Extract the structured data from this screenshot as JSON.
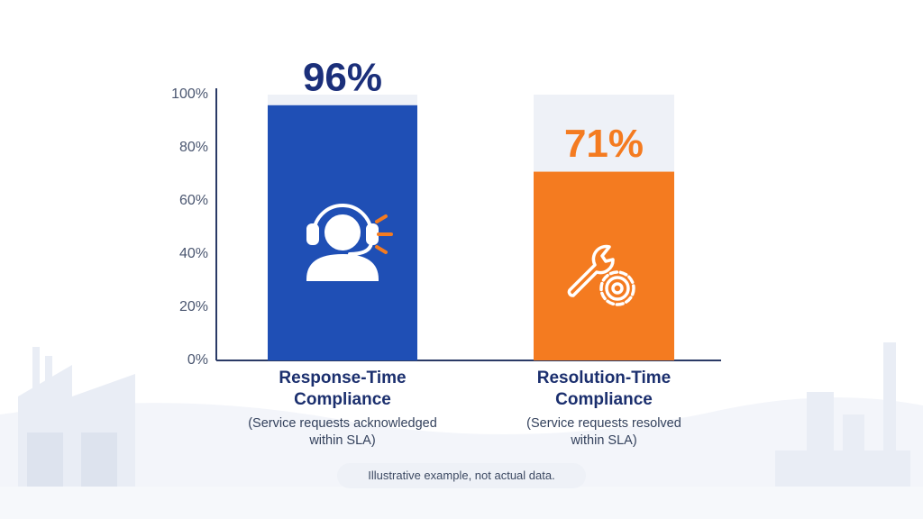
{
  "chart_data": {
    "type": "bar",
    "categories": [
      "Response-Time Compliance",
      "Resolution-Time Compliance"
    ],
    "descriptions": [
      "(Service requests acknowledged within SLA)",
      "(Service requests resolved within SLA)"
    ],
    "values": [
      96,
      71
    ],
    "value_labels": [
      "96%",
      "71%"
    ],
    "colors": [
      "#1f4fb5",
      "#f47b20"
    ],
    "value_label_colors": [
      "#1b2f7a",
      "#f47b20"
    ],
    "track_color": "#eef1f7",
    "ylim": [
      0,
      100
    ],
    "yticks": [
      {
        "value": 0,
        "label": "0%"
      },
      {
        "value": 20,
        "label": "20%"
      },
      {
        "value": 40,
        "label": "40%"
      },
      {
        "value": 60,
        "label": "60%"
      },
      {
        "value": 80,
        "label": "80%"
      },
      {
        "value": 100,
        "label": "100%"
      }
    ],
    "note": "Illustrative example, not actual data."
  }
}
